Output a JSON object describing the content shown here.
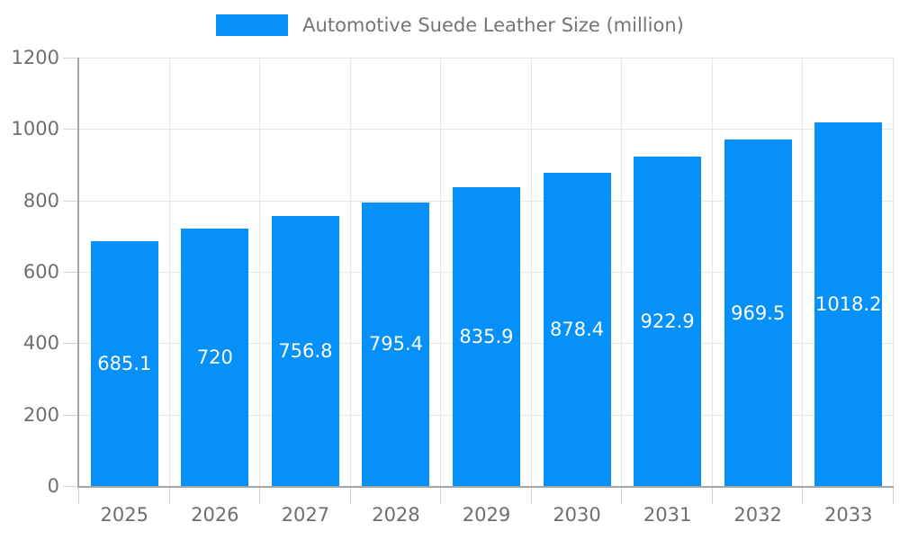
{
  "chart_data": {
    "type": "bar",
    "title": "",
    "legend": "Automotive Suede Leather Size (million)",
    "legend_position": "top",
    "categories": [
      "2025",
      "2026",
      "2027",
      "2028",
      "2029",
      "2030",
      "2031",
      "2032",
      "2033"
    ],
    "values": [
      685.1,
      720,
      756.8,
      795.4,
      835.9,
      878.4,
      922.9,
      969.5,
      1018.2
    ],
    "value_labels": [
      "685.1",
      "720",
      "756.8",
      "795.4",
      "835.9",
      "878.4",
      "922.9",
      "969.5",
      "1018.2"
    ],
    "xlabel": "",
    "ylabel": "",
    "ylim": [
      0,
      1200
    ],
    "yticks": [
      0,
      200,
      400,
      600,
      800,
      1000,
      1200
    ],
    "grid": true,
    "colors": {
      "bar": "#0690fa",
      "axis_text": "#6e6e6e",
      "legend_text": "#757575",
      "gridline": "#e6e6e6",
      "tick_line": "#d2d2d2",
      "axis_line": "#a6a6a6",
      "value_label": "#ffffff",
      "background": "#ffffff"
    }
  }
}
